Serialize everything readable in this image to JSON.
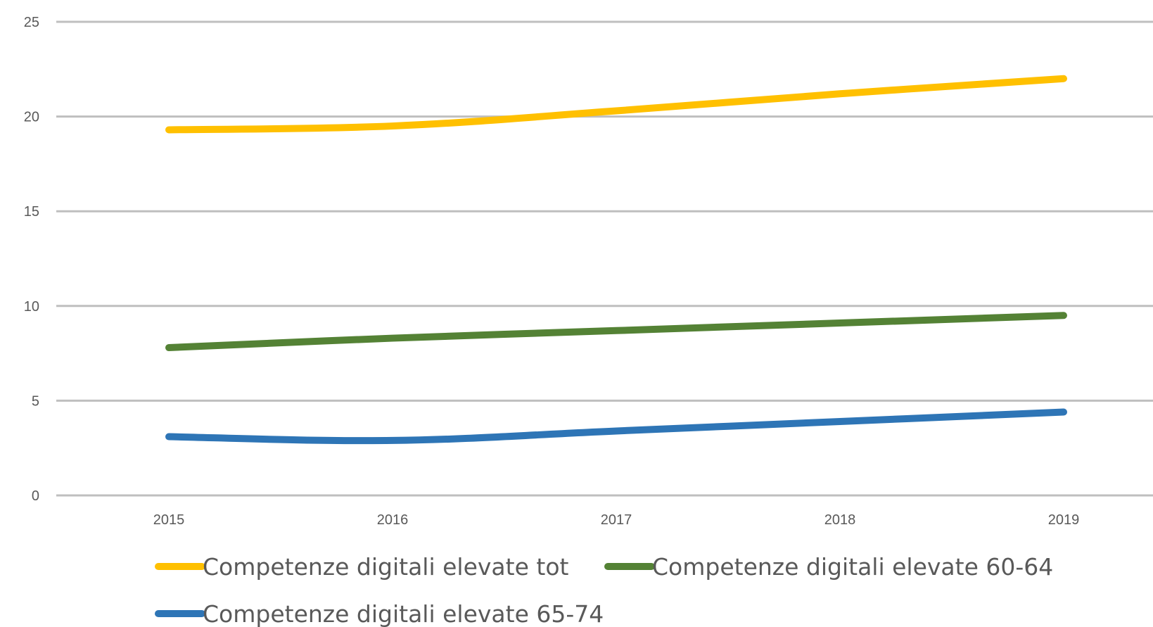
{
  "chart_data": {
    "type": "line",
    "title": "",
    "xlabel": "",
    "ylabel": "",
    "categories": [
      "2015",
      "2016",
      "2017",
      "2018",
      "2019"
    ],
    "ylim": [
      0,
      25
    ],
    "yticks": [
      "0",
      "5",
      "10",
      "15",
      "20",
      "25"
    ],
    "grid": true,
    "legend_position": "bottom",
    "series": [
      {
        "name": "Competenze digitali elevate tot",
        "color": "#FFC000",
        "values": [
          19.3,
          19.5,
          20.3,
          21.2,
          22.0
        ]
      },
      {
        "name": "Competenze digitali elevate 60-64",
        "color": "#548235",
        "values": [
          7.8,
          8.3,
          8.7,
          9.1,
          9.5
        ]
      },
      {
        "name": "Competenze digitali elevate 65-74",
        "color": "#2E75B6",
        "values": [
          3.1,
          2.9,
          3.4,
          3.9,
          4.4
        ]
      }
    ]
  }
}
